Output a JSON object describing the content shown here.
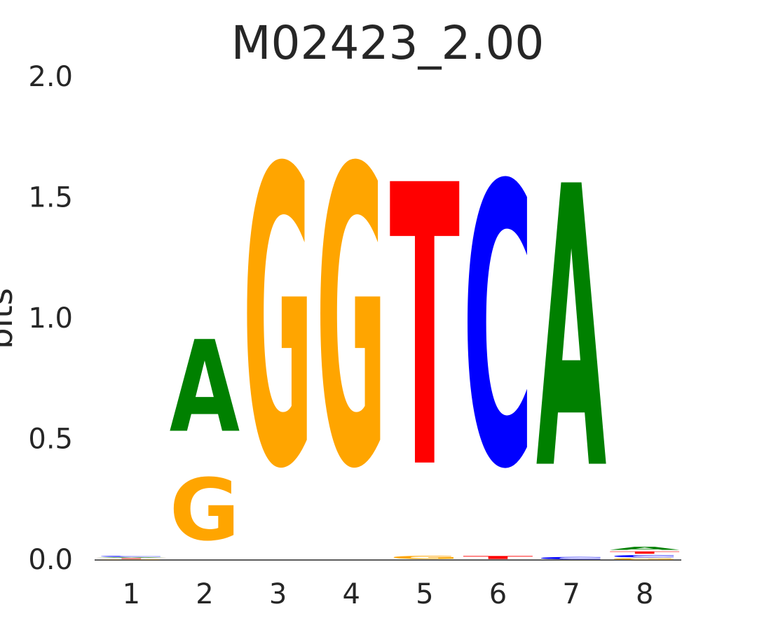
{
  "chart_data": {
    "type": "sequence-logo",
    "title": "M02423_2.00",
    "xlabel": "",
    "ylabel": "bits",
    "ylim": [
      0,
      2.0
    ],
    "y_ticks": [
      "0.0",
      "0.5",
      "1.0",
      "1.5",
      "2.0"
    ],
    "x_ticks": [
      "1",
      "2",
      "3",
      "4",
      "5",
      "6",
      "7",
      "8"
    ],
    "colors": {
      "A": "#008000",
      "C": "#0000ff",
      "G": "#ffa500",
      "T": "#ff0000"
    },
    "positions": [
      {
        "position": "1",
        "letters": [
          {
            "base": "G",
            "bits": 0.004
          },
          {
            "base": "T",
            "bits": 0.004
          },
          {
            "base": "A",
            "bits": 0.004
          },
          {
            "base": "C",
            "bits": 0.006
          }
        ]
      },
      {
        "position": "2",
        "letters": [
          {
            "base": "G",
            "bits": 0.41
          },
          {
            "base": "A",
            "bits": 0.61
          }
        ]
      },
      {
        "position": "3",
        "letters": [
          {
            "base": "G",
            "bits": 1.98
          }
        ]
      },
      {
        "position": "4",
        "letters": [
          {
            "base": "G",
            "bits": 1.98
          }
        ]
      },
      {
        "position": "5",
        "letters": [
          {
            "base": "G",
            "bits": 0.02
          },
          {
            "base": "T",
            "bits": 1.87
          }
        ]
      },
      {
        "position": "6",
        "letters": [
          {
            "base": "T",
            "bits": 0.02
          },
          {
            "base": "C",
            "bits": 1.87
          }
        ]
      },
      {
        "position": "7",
        "letters": [
          {
            "base": "C",
            "bits": 0.015
          },
          {
            "base": "A",
            "bits": 1.87
          }
        ]
      },
      {
        "position": "8",
        "letters": [
          {
            "base": "G",
            "bits": 0.008
          },
          {
            "base": "C",
            "bits": 0.015
          },
          {
            "base": "T",
            "bits": 0.015
          },
          {
            "base": "A",
            "bits": 0.02
          }
        ]
      }
    ]
  }
}
